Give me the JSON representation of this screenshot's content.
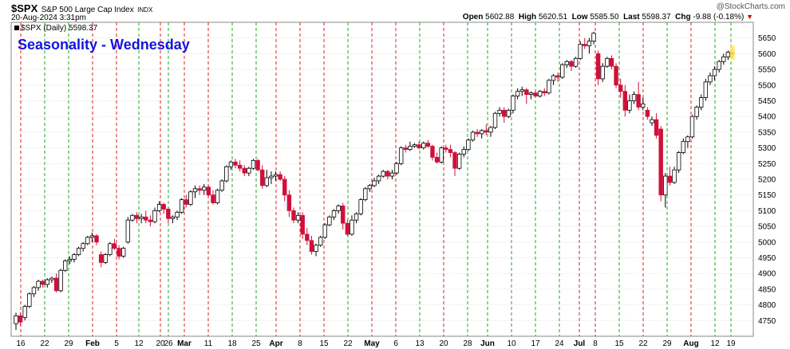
{
  "header": {
    "symbol": "$SPX",
    "description": "S&P 500 Large Cap Index",
    "exchange": "INDX",
    "timestamp": "20-Aug-2024 3:31pm",
    "open_label": "Open",
    "open": "5602.88",
    "high_label": "High",
    "high": "5620.51",
    "low_label": "Low",
    "low": "5585.50",
    "last_label": "Last",
    "last": "5598.37",
    "chg_label": "Chg",
    "chg": "-9.88 (-0.18%)",
    "watermark": "@StockCharts.com",
    "series_tag": "$SPX (Daily) 5598.37"
  },
  "overlay_title": "Seasonality - Wednesday",
  "colors": {
    "up_body": "#ffffff",
    "down_body": "#d0103a",
    "green_line": "#22aa22",
    "red_line": "#dd2222",
    "title": "#1414e0"
  },
  "chart_data": {
    "type": "candlestick",
    "title": "Seasonality - Wednesday",
    "y_axis": {
      "side": "right",
      "range": [
        4700,
        5700
      ],
      "ticks": [
        4750,
        4800,
        4850,
        4900,
        4950,
        5000,
        5050,
        5100,
        5150,
        5200,
        5250,
        5300,
        5350,
        5400,
        5450,
        5500,
        5550,
        5600,
        5650
      ]
    },
    "x_tick_labels": [
      {
        "label": "16",
        "bold": false
      },
      {
        "label": "22",
        "bold": false
      },
      {
        "label": "29",
        "bold": false
      },
      {
        "label": "Feb",
        "bold": true
      },
      {
        "label": "5",
        "bold": false
      },
      {
        "label": "12",
        "bold": false
      },
      {
        "label": "20",
        "bold": false
      },
      {
        "label": "26",
        "bold": false
      },
      {
        "label": "Mar",
        "bold": true
      },
      {
        "label": "11",
        "bold": false
      },
      {
        "label": "18",
        "bold": false
      },
      {
        "label": "25",
        "bold": false
      },
      {
        "label": "Apr",
        "bold": true
      },
      {
        "label": "8",
        "bold": false
      },
      {
        "label": "15",
        "bold": false
      },
      {
        "label": "22",
        "bold": false
      },
      {
        "label": "May",
        "bold": true
      },
      {
        "label": "6",
        "bold": false
      },
      {
        "label": "13",
        "bold": false
      },
      {
        "label": "20",
        "bold": false
      },
      {
        "label": "28",
        "bold": false
      },
      {
        "label": "Jun",
        "bold": true
      },
      {
        "label": "10",
        "bold": false
      },
      {
        "label": "17",
        "bold": false
      },
      {
        "label": "24",
        "bold": false
      },
      {
        "label": "Jul",
        "bold": true
      },
      {
        "label": "8",
        "bold": false
      },
      {
        "label": "15",
        "bold": false
      },
      {
        "label": "22",
        "bold": false
      },
      {
        "label": "29",
        "bold": false
      },
      {
        "label": "Aug",
        "bold": true
      },
      {
        "label": "12",
        "bold": false
      },
      {
        "label": "19",
        "bold": false
      }
    ],
    "grid": true,
    "vertical_markers": [
      {
        "x": 26,
        "color": "red"
      },
      {
        "x": 56,
        "color": "green"
      },
      {
        "x": 86,
        "color": "green"
      },
      {
        "x": 116,
        "color": "red"
      },
      {
        "x": 146,
        "color": "red"
      },
      {
        "x": 174,
        "color": "green"
      },
      {
        "x": 201,
        "color": "red"
      },
      {
        "x": 211,
        "color": "green"
      },
      {
        "x": 231,
        "color": "red"
      },
      {
        "x": 261,
        "color": "red"
      },
      {
        "x": 291,
        "color": "green"
      },
      {
        "x": 321,
        "color": "green"
      },
      {
        "x": 346,
        "color": "red"
      },
      {
        "x": 376,
        "color": "red"
      },
      {
        "x": 406,
        "color": "red"
      },
      {
        "x": 436,
        "color": "green"
      },
      {
        "x": 466,
        "color": "red"
      },
      {
        "x": 496,
        "color": "red"
      },
      {
        "x": 526,
        "color": "green"
      },
      {
        "x": 556,
        "color": "red"
      },
      {
        "x": 586,
        "color": "green"
      },
      {
        "x": 611,
        "color": "green"
      },
      {
        "x": 641,
        "color": "green"
      },
      {
        "x": 671,
        "color": "green"
      },
      {
        "x": 701,
        "color": "green"
      },
      {
        "x": 726,
        "color": "red"
      },
      {
        "x": 746,
        "color": "red"
      },
      {
        "x": 776,
        "color": "green"
      },
      {
        "x": 806,
        "color": "red"
      },
      {
        "x": 836,
        "color": "green"
      },
      {
        "x": 866,
        "color": "red"
      },
      {
        "x": 896,
        "color": "green"
      },
      {
        "x": 916,
        "color": "green"
      }
    ],
    "candles": [
      [
        4740,
        4775,
        4720,
        4765
      ],
      [
        4765,
        4775,
        4735,
        4745
      ],
      [
        4760,
        4800,
        4750,
        4795
      ],
      [
        4795,
        4840,
        4790,
        4835
      ],
      [
        4835,
        4860,
        4825,
        4855
      ],
      [
        4855,
        4880,
        4845,
        4875
      ],
      [
        4875,
        4880,
        4855,
        4865
      ],
      [
        4865,
        4885,
        4855,
        4880
      ],
      [
        4880,
        4890,
        4870,
        4885
      ],
      [
        4885,
        4900,
        4840,
        4845
      ],
      [
        4845,
        4915,
        4840,
        4910
      ],
      [
        4910,
        4945,
        4905,
        4940
      ],
      [
        4940,
        4955,
        4930,
        4945
      ],
      [
        4945,
        4965,
        4935,
        4960
      ],
      [
        4960,
        4985,
        4955,
        4980
      ],
      [
        4980,
        5000,
        4970,
        4995
      ],
      [
        4995,
        5020,
        4990,
        5015
      ],
      [
        5015,
        5030,
        5000,
        5020
      ],
      [
        5020,
        5025,
        4990,
        5000
      ],
      [
        4960,
        4970,
        4920,
        4935
      ],
      [
        4935,
        4965,
        4930,
        4960
      ],
      [
        4960,
        5000,
        4955,
        4995
      ],
      [
        4995,
        5010,
        4975,
        4980
      ],
      [
        4980,
        4990,
        4945,
        4955
      ],
      [
        4955,
        4985,
        4950,
        4980
      ],
      [
        5000,
        5080,
        4995,
        5070
      ],
      [
        5070,
        5090,
        5065,
        5085
      ],
      [
        5085,
        5095,
        5060,
        5075
      ],
      [
        5075,
        5090,
        5060,
        5080
      ],
      [
        5080,
        5100,
        5060,
        5070
      ],
      [
        5070,
        5085,
        5050,
        5065
      ],
      [
        5065,
        5110,
        5060,
        5100
      ],
      [
        5100,
        5130,
        5095,
        5120
      ],
      [
        5120,
        5125,
        5090,
        5105
      ],
      [
        5105,
        5110,
        5060,
        5075
      ],
      [
        5075,
        5085,
        5060,
        5080
      ],
      [
        5080,
        5100,
        5070,
        5095
      ],
      [
        5095,
        5140,
        5090,
        5135
      ],
      [
        5135,
        5150,
        5110,
        5120
      ],
      [
        5120,
        5165,
        5115,
        5160
      ],
      [
        5160,
        5180,
        5140,
        5170
      ],
      [
        5170,
        5180,
        5150,
        5165
      ],
      [
        5165,
        5185,
        5150,
        5175
      ],
      [
        5175,
        5180,
        5145,
        5150
      ],
      [
        5150,
        5165,
        5120,
        5125
      ],
      [
        5125,
        5170,
        5120,
        5165
      ],
      [
        5165,
        5200,
        5160,
        5195
      ],
      [
        5195,
        5245,
        5190,
        5240
      ],
      [
        5240,
        5260,
        5230,
        5255
      ],
      [
        5255,
        5265,
        5235,
        5245
      ],
      [
        5245,
        5260,
        5225,
        5235
      ],
      [
        5235,
        5245,
        5210,
        5220
      ],
      [
        5220,
        5240,
        5210,
        5235
      ],
      [
        5235,
        5265,
        5230,
        5260
      ],
      [
        5260,
        5265,
        5225,
        5230
      ],
      [
        5230,
        5245,
        5170,
        5180
      ],
      [
        5180,
        5230,
        5175,
        5205
      ],
      [
        5205,
        5225,
        5185,
        5210
      ],
      [
        5210,
        5225,
        5195,
        5215
      ],
      [
        5215,
        5225,
        5195,
        5200
      ],
      [
        5200,
        5210,
        5130,
        5150
      ],
      [
        5150,
        5165,
        5080,
        5100
      ],
      [
        5100,
        5110,
        5060,
        5070
      ],
      [
        5070,
        5095,
        5060,
        5085
      ],
      [
        5085,
        5095,
        5010,
        5025
      ],
      [
        5025,
        5045,
        4990,
        5005
      ],
      [
        5005,
        5020,
        4960,
        4970
      ],
      [
        4970,
        4995,
        4955,
        4990
      ],
      [
        4990,
        5020,
        4985,
        5015
      ],
      [
        5015,
        5060,
        5010,
        5055
      ],
      [
        5055,
        5085,
        5050,
        5080
      ],
      [
        5080,
        5105,
        5070,
        5100
      ],
      [
        5100,
        5120,
        5090,
        5115
      ],
      [
        5115,
        5125,
        5040,
        5060
      ],
      [
        5060,
        5070,
        5020,
        5025
      ],
      [
        5025,
        5085,
        5020,
        5070
      ],
      [
        5070,
        5095,
        5060,
        5090
      ],
      [
        5090,
        5140,
        5085,
        5135
      ],
      [
        5135,
        5175,
        5130,
        5170
      ],
      [
        5170,
        5185,
        5160,
        5180
      ],
      [
        5180,
        5205,
        5175,
        5195
      ],
      [
        5195,
        5215,
        5185,
        5210
      ],
      [
        5210,
        5230,
        5205,
        5225
      ],
      [
        5225,
        5230,
        5200,
        5210
      ],
      [
        5210,
        5230,
        5200,
        5220
      ],
      [
        5220,
        5255,
        5215,
        5250
      ],
      [
        5250,
        5305,
        5245,
        5300
      ],
      [
        5300,
        5310,
        5285,
        5295
      ],
      [
        5295,
        5320,
        5290,
        5305
      ],
      [
        5305,
        5315,
        5300,
        5310
      ],
      [
        5310,
        5320,
        5295,
        5300
      ],
      [
        5300,
        5320,
        5295,
        5315
      ],
      [
        5315,
        5325,
        5300,
        5305
      ],
      [
        5305,
        5310,
        5260,
        5270
      ],
      [
        5270,
        5285,
        5250,
        5255
      ],
      [
        5255,
        5305,
        5250,
        5300
      ],
      [
        5300,
        5310,
        5285,
        5295
      ],
      [
        5295,
        5310,
        5270,
        5285
      ],
      [
        5285,
        5290,
        5210,
        5235
      ],
      [
        5235,
        5285,
        5230,
        5280
      ],
      [
        5280,
        5305,
        5270,
        5295
      ],
      [
        5295,
        5330,
        5290,
        5325
      ],
      [
        5325,
        5355,
        5320,
        5350
      ],
      [
        5350,
        5360,
        5335,
        5345
      ],
      [
        5345,
        5360,
        5330,
        5355
      ],
      [
        5355,
        5375,
        5340,
        5350
      ],
      [
        5350,
        5370,
        5335,
        5365
      ],
      [
        5365,
        5415,
        5360,
        5410
      ],
      [
        5410,
        5430,
        5400,
        5420
      ],
      [
        5420,
        5430,
        5380,
        5400
      ],
      [
        5400,
        5425,
        5395,
        5420
      ],
      [
        5420,
        5470,
        5410,
        5465
      ],
      [
        5465,
        5490,
        5455,
        5480
      ],
      [
        5480,
        5495,
        5465,
        5485
      ],
      [
        5485,
        5490,
        5440,
        5470
      ],
      [
        5470,
        5480,
        5455,
        5475
      ],
      [
        5475,
        5485,
        5460,
        5465
      ],
      [
        5465,
        5485,
        5460,
        5480
      ],
      [
        5480,
        5490,
        5465,
        5475
      ],
      [
        5475,
        5520,
        5470,
        5515
      ],
      [
        5515,
        5535,
        5500,
        5530
      ],
      [
        5530,
        5540,
        5510,
        5525
      ],
      [
        5525,
        5570,
        5520,
        5565
      ],
      [
        5565,
        5580,
        5555,
        5575
      ],
      [
        5575,
        5580,
        5545,
        5560
      ],
      [
        5560,
        5590,
        5555,
        5585
      ],
      [
        5585,
        5640,
        5580,
        5630
      ],
      [
        5630,
        5650,
        5615,
        5625
      ],
      [
        5625,
        5650,
        5600,
        5640
      ],
      [
        5640,
        5670,
        5630,
        5665
      ],
      [
        5600,
        5610,
        5500,
        5520
      ],
      [
        5520,
        5570,
        5510,
        5560
      ],
      [
        5560,
        5590,
        5555,
        5585
      ],
      [
        5585,
        5595,
        5550,
        5560
      ],
      [
        5560,
        5570,
        5490,
        5500
      ],
      [
        5500,
        5520,
        5460,
        5480
      ],
      [
        5480,
        5500,
        5400,
        5420
      ],
      [
        5420,
        5470,
        5410,
        5450
      ],
      [
        5450,
        5480,
        5440,
        5470
      ],
      [
        5470,
        5510,
        5420,
        5430
      ],
      [
        5430,
        5460,
        5420,
        5440
      ],
      [
        5420,
        5430,
        5390,
        5400
      ],
      [
        5380,
        5400,
        5370,
        5390
      ],
      [
        5390,
        5410,
        5330,
        5340
      ],
      [
        5360,
        5370,
        5130,
        5150
      ],
      [
        5150,
        5220,
        5110,
        5210
      ],
      [
        5210,
        5240,
        5180,
        5190
      ],
      [
        5190,
        5240,
        5185,
        5230
      ],
      [
        5230,
        5290,
        5220,
        5285
      ],
      [
        5285,
        5330,
        5280,
        5320
      ],
      [
        5320,
        5340,
        5300,
        5335
      ],
      [
        5335,
        5405,
        5330,
        5400
      ],
      [
        5400,
        5435,
        5390,
        5430
      ],
      [
        5430,
        5470,
        5420,
        5460
      ],
      [
        5460,
        5520,
        5450,
        5510
      ],
      [
        5510,
        5540,
        5500,
        5530
      ],
      [
        5530,
        5560,
        5515,
        5550
      ],
      [
        5550,
        5580,
        5540,
        5575
      ],
      [
        5575,
        5600,
        5565,
        5590
      ],
      [
        5590,
        5610,
        5580,
        5605
      ],
      [
        5602.88,
        5620.51,
        5585.5,
        5598.37
      ]
    ]
  }
}
